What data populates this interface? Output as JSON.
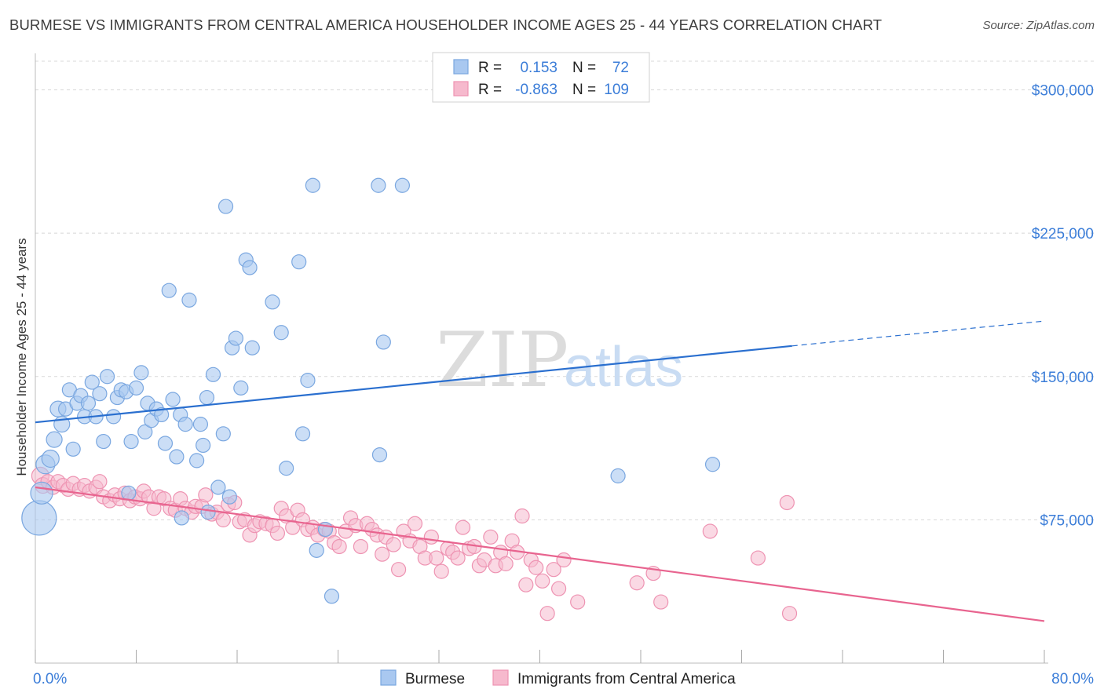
{
  "title": "BURMESE VS IMMIGRANTS FROM CENTRAL AMERICA HOUSEHOLDER INCOME AGES 25 - 44 YEARS CORRELATION CHART",
  "source": "Source: ZipAtlas.com",
  "watermark": {
    "zip": "ZIP",
    "atlas": "atlas"
  },
  "colors": {
    "burmese_fill": "#a9c8f0",
    "burmese_stroke": "#7aa7e0",
    "burmese_line": "#2a6fcf",
    "central_fill": "#f6b9cd",
    "central_stroke": "#ee93b2",
    "central_line": "#e8648f",
    "axis_text": "#3b7dd8",
    "grid": "#d8d8d8"
  },
  "legend": {
    "rows": [
      {
        "r_label": "R =",
        "r_value": "0.153",
        "n_label": "N =",
        "n_value": "72"
      },
      {
        "r_label": "R =",
        "r_value": "-0.863",
        "n_label": "N =",
        "n_value": "109"
      }
    ]
  },
  "bottom_legend": [
    "Burmese",
    "Immigrants from Central America"
  ],
  "chart_data": {
    "type": "scatter",
    "title": "BURMESE VS IMMIGRANTS FROM CENTRAL AMERICA HOUSEHOLDER INCOME AGES 25 - 44 YEARS CORRELATION CHART",
    "xlabel": "",
    "ylabel": "Householder Income Ages 25 - 44 years",
    "xlim": [
      0,
      80
    ],
    "ylim": [
      0,
      315000
    ],
    "x_tick_labels": [
      "0.0%",
      "80.0%"
    ],
    "y_ticks": [
      75000,
      150000,
      225000,
      300000
    ],
    "y_tick_labels": [
      "$75,000",
      "$150,000",
      "$225,000",
      "$300,000"
    ],
    "grid": true,
    "legend_position": "top-center",
    "series": [
      {
        "name": "Burmese",
        "r": 0.153,
        "n": 72,
        "trend": {
          "x": [
            0,
            60
          ],
          "y": [
            126000,
            166000
          ],
          "dashed_to": [
            80,
            179000
          ]
        },
        "points": [
          [
            0.3,
            76000,
            22
          ],
          [
            0.5,
            89000,
            14
          ],
          [
            0.8,
            104000,
            12
          ],
          [
            1.2,
            107000,
            11
          ],
          [
            1.5,
            117000,
            10
          ],
          [
            1.8,
            133000,
            10
          ],
          [
            2.1,
            125000,
            10
          ],
          [
            2.4,
            133000,
            9
          ],
          [
            2.7,
            143000,
            9
          ],
          [
            3.0,
            112000,
            9
          ],
          [
            3.3,
            136000,
            9
          ],
          [
            3.6,
            140000,
            9
          ],
          [
            3.9,
            129000,
            9
          ],
          [
            4.2,
            136000,
            9
          ],
          [
            4.5,
            147000,
            9
          ],
          [
            4.8,
            129000,
            9
          ],
          [
            5.1,
            141000,
            9
          ],
          [
            5.4,
            116000,
            9
          ],
          [
            5.7,
            150000,
            9
          ],
          [
            6.2,
            129000,
            9
          ],
          [
            6.5,
            139000,
            9
          ],
          [
            6.8,
            143000,
            9
          ],
          [
            7.2,
            142000,
            9
          ],
          [
            7.6,
            116000,
            9
          ],
          [
            8.0,
            144000,
            9
          ],
          [
            8.4,
            152000,
            9
          ],
          [
            8.7,
            121000,
            9
          ],
          [
            8.9,
            136000,
            9
          ],
          [
            9.2,
            127000,
            9
          ],
          [
            9.6,
            133000,
            9
          ],
          [
            10.0,
            130000,
            9
          ],
          [
            10.3,
            115000,
            9
          ],
          [
            10.6,
            195000,
            9
          ],
          [
            10.9,
            138000,
            9
          ],
          [
            11.2,
            108000,
            9
          ],
          [
            11.5,
            130000,
            9
          ],
          [
            11.9,
            125000,
            9
          ],
          [
            12.2,
            190000,
            9
          ],
          [
            12.8,
            106000,
            9
          ],
          [
            13.1,
            125000,
            9
          ],
          [
            13.3,
            114000,
            9
          ],
          [
            13.6,
            139000,
            9
          ],
          [
            14.1,
            151000,
            9
          ],
          [
            14.5,
            92000,
            9
          ],
          [
            14.9,
            120000,
            9
          ],
          [
            15.1,
            239000,
            9
          ],
          [
            15.4,
            87000,
            9
          ],
          [
            15.6,
            165000,
            9
          ],
          [
            15.9,
            170000,
            9
          ],
          [
            16.3,
            144000,
            9
          ],
          [
            16.7,
            211000,
            9
          ],
          [
            17.0,
            207000,
            9
          ],
          [
            17.2,
            165000,
            9
          ],
          [
            18.8,
            189000,
            9
          ],
          [
            19.5,
            173000,
            9
          ],
          [
            19.9,
            102000,
            9
          ],
          [
            20.9,
            210000,
            9
          ],
          [
            21.2,
            120000,
            9
          ],
          [
            21.6,
            148000,
            9
          ],
          [
            22.0,
            250000,
            9
          ],
          [
            22.3,
            59000,
            9
          ],
          [
            23.0,
            70000,
            9
          ],
          [
            23.5,
            35000,
            9
          ],
          [
            27.2,
            250000,
            9
          ],
          [
            29.1,
            250000,
            9
          ],
          [
            13.7,
            79000,
            9
          ],
          [
            11.6,
            76000,
            9
          ],
          [
            7.4,
            89000,
            9
          ],
          [
            27.3,
            109000,
            9
          ],
          [
            27.6,
            168000,
            9
          ],
          [
            46.2,
            98000,
            9
          ],
          [
            53.7,
            104000,
            9
          ]
        ]
      },
      {
        "name": "Immigrants from Central America",
        "r": -0.863,
        "n": 109,
        "trend": {
          "x": [
            0,
            80
          ],
          "y": [
            92000,
            22000
          ]
        },
        "points": [
          [
            0.4,
            98000,
            11
          ],
          [
            0.6,
            93000,
            10
          ],
          [
            1.0,
            95000,
            9
          ],
          [
            1.4,
            92000,
            9
          ],
          [
            1.8,
            95000,
            9
          ],
          [
            2.2,
            93000,
            9
          ],
          [
            2.6,
            91000,
            9
          ],
          [
            3.0,
            94000,
            9
          ],
          [
            3.5,
            91000,
            9
          ],
          [
            3.9,
            93000,
            9
          ],
          [
            4.3,
            90000,
            9
          ],
          [
            4.8,
            92000,
            9
          ],
          [
            5.1,
            95000,
            9
          ],
          [
            5.4,
            87000,
            9
          ],
          [
            5.9,
            85000,
            9
          ],
          [
            6.3,
            88000,
            9
          ],
          [
            6.7,
            86000,
            9
          ],
          [
            7.1,
            89000,
            9
          ],
          [
            7.5,
            85000,
            9
          ],
          [
            7.9,
            87000,
            9
          ],
          [
            8.3,
            86000,
            9
          ],
          [
            8.6,
            90000,
            9
          ],
          [
            9.0,
            87000,
            9
          ],
          [
            9.4,
            81000,
            9
          ],
          [
            9.8,
            87000,
            9
          ],
          [
            10.2,
            86000,
            9
          ],
          [
            10.7,
            81000,
            9
          ],
          [
            11.1,
            80000,
            9
          ],
          [
            11.5,
            86000,
            9
          ],
          [
            11.9,
            81000,
            9
          ],
          [
            12.4,
            79000,
            9
          ],
          [
            12.7,
            82000,
            9
          ],
          [
            13.2,
            82000,
            9
          ],
          [
            13.5,
            88000,
            9
          ],
          [
            14.0,
            78000,
            9
          ],
          [
            14.4,
            79000,
            9
          ],
          [
            14.9,
            75000,
            9
          ],
          [
            15.3,
            83000,
            9
          ],
          [
            15.8,
            84000,
            9
          ],
          [
            16.2,
            74000,
            9
          ],
          [
            16.6,
            75000,
            9
          ],
          [
            17.0,
            67000,
            9
          ],
          [
            17.4,
            72000,
            9
          ],
          [
            17.8,
            74000,
            9
          ],
          [
            18.3,
            73000,
            9
          ],
          [
            18.8,
            72000,
            9
          ],
          [
            19.2,
            68000,
            9
          ],
          [
            19.5,
            81000,
            9
          ],
          [
            19.9,
            77000,
            9
          ],
          [
            20.4,
            71000,
            9
          ],
          [
            20.8,
            80000,
            9
          ],
          [
            21.2,
            75000,
            9
          ],
          [
            21.6,
            70000,
            9
          ],
          [
            22.0,
            71000,
            9
          ],
          [
            22.4,
            67000,
            9
          ],
          [
            22.9,
            70000,
            9
          ],
          [
            23.3,
            69000,
            9
          ],
          [
            23.7,
            63000,
            9
          ],
          [
            24.1,
            61000,
            9
          ],
          [
            24.6,
            69000,
            9
          ],
          [
            25.0,
            76000,
            9
          ],
          [
            25.4,
            72000,
            9
          ],
          [
            25.8,
            61000,
            9
          ],
          [
            26.3,
            73000,
            9
          ],
          [
            26.7,
            70000,
            9
          ],
          [
            27.1,
            67000,
            9
          ],
          [
            27.5,
            57000,
            9
          ],
          [
            27.8,
            66000,
            9
          ],
          [
            28.4,
            62000,
            9
          ],
          [
            28.8,
            49000,
            9
          ],
          [
            29.2,
            69000,
            9
          ],
          [
            29.7,
            64000,
            9
          ],
          [
            30.1,
            73000,
            9
          ],
          [
            30.5,
            61000,
            9
          ],
          [
            30.9,
            55000,
            9
          ],
          [
            31.4,
            66000,
            9
          ],
          [
            31.8,
            55000,
            9
          ],
          [
            32.2,
            48000,
            9
          ],
          [
            32.7,
            60000,
            9
          ],
          [
            33.1,
            58000,
            9
          ],
          [
            33.5,
            55000,
            9
          ],
          [
            33.9,
            71000,
            9
          ],
          [
            34.4,
            60000,
            9
          ],
          [
            34.8,
            61000,
            9
          ],
          [
            35.2,
            51000,
            9
          ],
          [
            35.6,
            54000,
            9
          ],
          [
            36.1,
            66000,
            9
          ],
          [
            36.5,
            51000,
            9
          ],
          [
            36.9,
            58000,
            9
          ],
          [
            37.3,
            52000,
            9
          ],
          [
            37.8,
            64000,
            9
          ],
          [
            38.2,
            58000,
            9
          ],
          [
            38.6,
            77000,
            9
          ],
          [
            38.9,
            41000,
            9
          ],
          [
            39.3,
            54000,
            9
          ],
          [
            39.7,
            50000,
            9
          ],
          [
            40.2,
            43000,
            9
          ],
          [
            40.6,
            26000,
            9
          ],
          [
            41.1,
            49000,
            9
          ],
          [
            41.5,
            39000,
            9
          ],
          [
            41.9,
            54000,
            9
          ],
          [
            43.0,
            32000,
            9
          ],
          [
            47.7,
            42000,
            9
          ],
          [
            49.0,
            47000,
            9
          ],
          [
            49.6,
            32000,
            9
          ],
          [
            53.5,
            69000,
            9
          ],
          [
            57.3,
            55000,
            9
          ],
          [
            59.6,
            84000,
            9
          ],
          [
            59.8,
            26000,
            9
          ]
        ]
      }
    ]
  }
}
